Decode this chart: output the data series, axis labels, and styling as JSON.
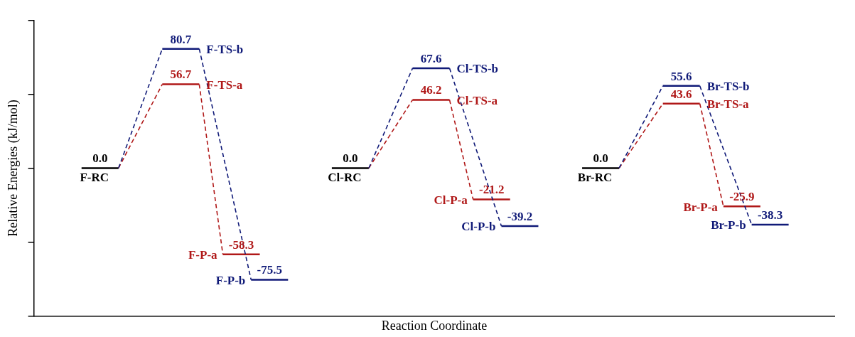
{
  "chart_data": {
    "type": "other",
    "xlabel": "Reaction Coordinate",
    "ylabel": "Relative Energies (kJ/mol)",
    "categories": [
      "F-RC",
      "F-TS-a",
      "F-TS-b",
      "F-P-a",
      "F-P-b",
      "Cl-RC",
      "Cl-TS-a",
      "Cl-TS-b",
      "Cl-P-a",
      "Cl-P-b",
      "Br-RC",
      "Br-TS-a",
      "Br-TS-b",
      "Br-P-a",
      "Br-P-b"
    ],
    "values": [
      0.0,
      56.7,
      80.7,
      -58.3,
      -75.5,
      0.0,
      46.2,
      67.6,
      -21.2,
      -39.2,
      0.0,
      43.6,
      55.6,
      -25.9,
      -38.3
    ],
    "value_labels": [
      "0.0",
      "56.7",
      "80.7",
      "-58.3",
      "-75.5",
      "0.0",
      "46.2",
      "67.6",
      "-21.2",
      "-39.2",
      "0.0",
      "43.6",
      "55.6",
      "-25.9",
      "-38.3"
    ],
    "colors": [
      "#000000",
      "#b01818",
      "#101a78",
      "#b01818",
      "#101a78",
      "#000000",
      "#b01818",
      "#101a78",
      "#b01818",
      "#101a78",
      "#000000",
      "#b01818",
      "#101a78",
      "#b01818",
      "#101a78"
    ]
  }
}
